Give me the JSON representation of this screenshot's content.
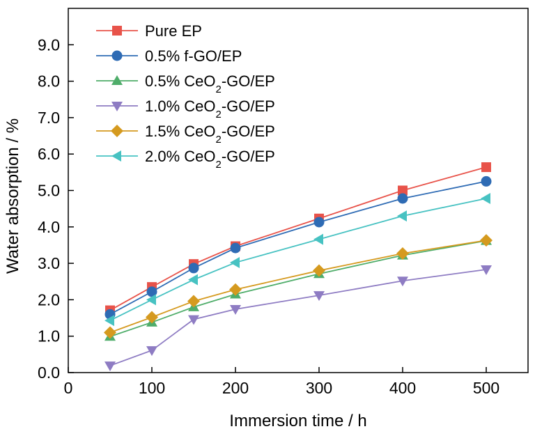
{
  "chart_data": {
    "type": "line",
    "title": "",
    "xlabel": "Immersion time / h",
    "ylabel": "Water absorption / %",
    "xlim": [
      0,
      550
    ],
    "ylim": [
      0,
      10
    ],
    "xticks": [
      0,
      100,
      200,
      300,
      400,
      500
    ],
    "yticks": [
      0.0,
      1.0,
      2.0,
      3.0,
      4.0,
      5.0,
      6.0,
      7.0,
      8.0,
      9.0
    ],
    "ytick_format": 1,
    "grid": false,
    "legend_position": "top-left",
    "x": [
      50,
      100,
      150,
      200,
      300,
      400,
      500
    ],
    "series": [
      {
        "name": "Pure EP",
        "name_prefix": "",
        "name_sub": "",
        "name_suffix": "",
        "marker": "square",
        "color": "#e8534a",
        "values": [
          1.71,
          2.35,
          2.98,
          3.47,
          4.23,
          5.0,
          5.64
        ]
      },
      {
        "name": "0.5% f-GO/EP",
        "name_prefix": "",
        "name_sub": "",
        "name_suffix": "",
        "marker": "circle",
        "color": "#2e6bb4",
        "values": [
          1.6,
          2.22,
          2.87,
          3.42,
          4.13,
          4.78,
          5.25
        ]
      },
      {
        "name": "0.5% CeO2-GO/EP",
        "name_prefix": "0.5% CeO",
        "name_sub": "2",
        "name_suffix": "-GO/EP",
        "marker": "triangle-up",
        "color": "#4fad6a",
        "values": [
          0.99,
          1.38,
          1.8,
          2.15,
          2.71,
          3.22,
          3.62
        ]
      },
      {
        "name": "1.0% CeO2-GO/EP",
        "name_prefix": "1.0% CeO",
        "name_sub": "2",
        "name_suffix": "-GO/EP",
        "marker": "triangle-down",
        "color": "#8e7cc3",
        "values": [
          0.19,
          0.61,
          1.46,
          1.74,
          2.12,
          2.52,
          2.83
        ]
      },
      {
        "name": "1.5% CeO2-GO/EP",
        "name_prefix": "1.5% CeO",
        "name_sub": "2",
        "name_suffix": "-GO/EP",
        "marker": "diamond",
        "color": "#d59a1f",
        "values": [
          1.1,
          1.52,
          1.96,
          2.28,
          2.8,
          3.27,
          3.63
        ]
      },
      {
        "name": "2.0% CeO2-GO/EP",
        "name_prefix": "2.0% CeO",
        "name_sub": "2",
        "name_suffix": "-GO/EP",
        "marker": "triangle-left",
        "color": "#47c2c2",
        "values": [
          1.43,
          2.0,
          2.55,
          3.02,
          3.66,
          4.3,
          4.78
        ]
      }
    ]
  }
}
